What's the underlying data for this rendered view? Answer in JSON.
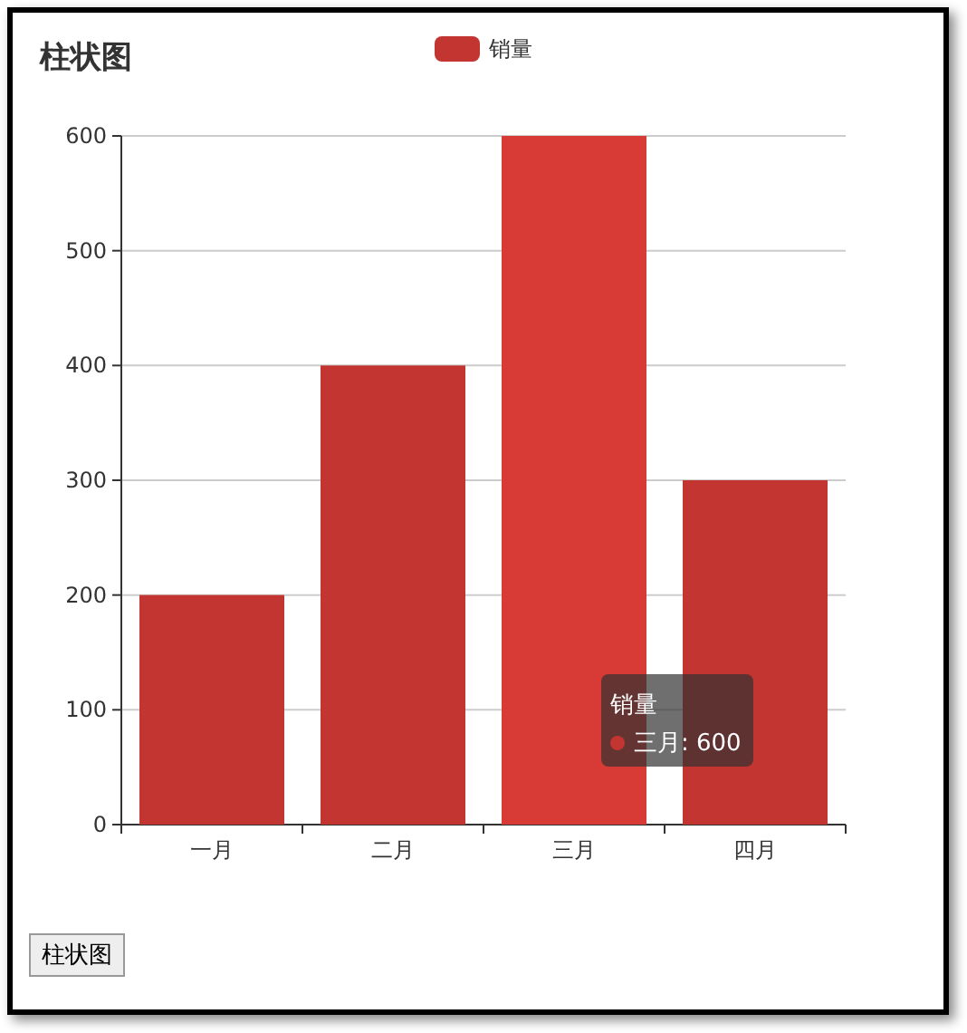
{
  "chart_data": {
    "type": "bar",
    "title": "柱状图",
    "categories": [
      "一月",
      "二月",
      "三月",
      "四月"
    ],
    "series": [
      {
        "name": "销量",
        "color": "#c23531",
        "colors": [
          "#c23531",
          "#c23531",
          "#d83b35",
          "#c23531"
        ],
        "values": [
          200,
          400,
          600,
          300
        ]
      }
    ],
    "ylim": [
      0,
      600
    ],
    "yticks": [
      0,
      100,
      200,
      300,
      400,
      500,
      600
    ],
    "grid": "y",
    "legend": "top",
    "annotations": [
      "销量",
      "三月: 600",
      "柱状图"
    ]
  }
}
